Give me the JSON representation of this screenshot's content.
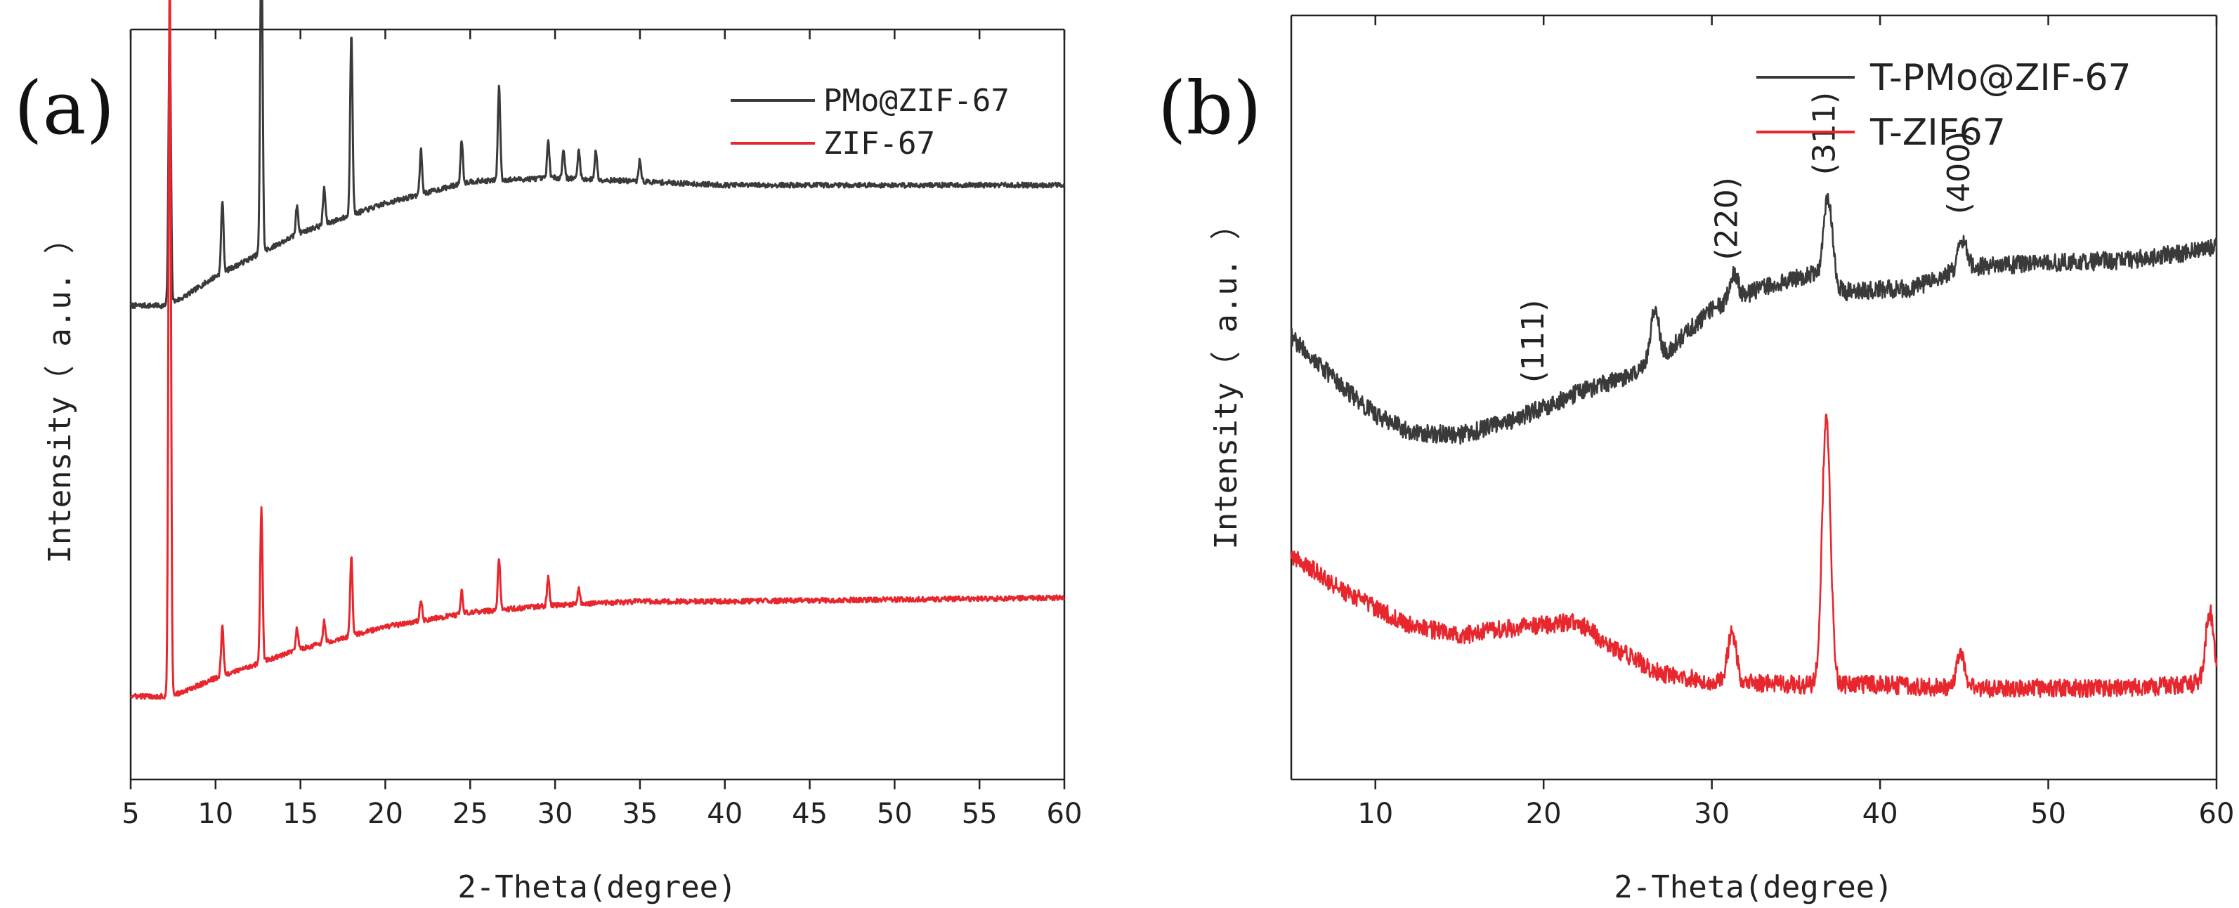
{
  "chart_data": [
    {
      "panel": "(a)",
      "type": "line",
      "xlabel": "2-Theta(degree)",
      "ylabel": "Intensity（ a.u. ）",
      "xlim": [
        5,
        60
      ],
      "xticks": [
        5,
        10,
        15,
        20,
        25,
        30,
        35,
        40,
        45,
        50,
        55,
        60
      ],
      "legend_position": "top-right",
      "series": [
        {
          "name": "PMo@ZIF-67",
          "color": "#3a3a3a",
          "baseline": [
            [
              5,
              0.62
            ],
            [
              7,
              0.62
            ],
            [
              8,
              0.63
            ],
            [
              10,
              0.66
            ],
            [
              15,
              0.72
            ],
            [
              20,
              0.76
            ],
            [
              25,
              0.79
            ],
            [
              30,
              0.795
            ],
            [
              35,
              0.79
            ],
            [
              40,
              0.785
            ],
            [
              60,
              0.785
            ]
          ],
          "peaks": [
            [
              7.3,
              0.38
            ],
            [
              10.4,
              0.1
            ],
            [
              12.7,
              0.45
            ],
            [
              14.8,
              0.04
            ],
            [
              16.4,
              0.05
            ],
            [
              18.0,
              0.25
            ],
            [
              22.1,
              0.06
            ],
            [
              24.5,
              0.06
            ],
            [
              26.7,
              0.13
            ],
            [
              29.6,
              0.05
            ],
            [
              30.5,
              0.04
            ],
            [
              31.4,
              0.04
            ],
            [
              32.4,
              0.04
            ],
            [
              35.0,
              0.03
            ]
          ]
        },
        {
          "name": "ZIF-67",
          "color": "#e8262d",
          "baseline": [
            [
              5,
              0.085
            ],
            [
              7,
              0.085
            ],
            [
              8,
              0.09
            ],
            [
              10,
              0.11
            ],
            [
              15,
              0.15
            ],
            [
              20,
              0.18
            ],
            [
              25,
              0.2
            ],
            [
              30,
              0.21
            ],
            [
              35,
              0.215
            ],
            [
              40,
              0.215
            ],
            [
              60,
              0.22
            ]
          ],
          "peaks": [
            [
              7.3,
              1.0
            ],
            [
              10.4,
              0.07
            ],
            [
              12.7,
              0.21
            ],
            [
              14.8,
              0.03
            ],
            [
              16.4,
              0.03
            ],
            [
              18.0,
              0.11
            ],
            [
              22.1,
              0.03
            ],
            [
              24.5,
              0.03
            ],
            [
              26.7,
              0.07
            ],
            [
              29.6,
              0.04
            ],
            [
              31.4,
              0.02
            ]
          ]
        }
      ]
    },
    {
      "panel": "(b)",
      "type": "line",
      "xlabel": "2-Theta(degree)",
      "ylabel": "Intensity（ a.u. ）",
      "xlim": [
        5,
        60
      ],
      "xticks": [
        10,
        20,
        30,
        40,
        50,
        60
      ],
      "legend_position": "top-right",
      "annotations": [
        {
          "text": "(111)",
          "x": 19.5
        },
        {
          "text": "(220)",
          "x": 31.0
        },
        {
          "text": "(311)",
          "x": 36.8
        },
        {
          "text": "(400)",
          "x": 44.8
        }
      ],
      "series": [
        {
          "name": "T-PMo@ZIF-67",
          "color": "#3a3a3a",
          "baseline": [
            [
              5,
              0.6
            ],
            [
              8,
              0.53
            ],
            [
              10,
              0.49
            ],
            [
              12,
              0.465
            ],
            [
              15,
              0.46
            ],
            [
              18,
              0.48
            ],
            [
              20,
              0.5
            ],
            [
              22,
              0.52
            ],
            [
              25,
              0.545
            ],
            [
              26.5,
              0.56
            ],
            [
              30,
              0.64
            ],
            [
              33,
              0.67
            ],
            [
              36,
              0.69
            ],
            [
              38,
              0.665
            ],
            [
              42,
              0.67
            ],
            [
              45,
              0.7
            ],
            [
              50,
              0.705
            ],
            [
              55,
              0.71
            ],
            [
              58,
              0.72
            ],
            [
              60,
              0.73
            ]
          ],
          "peaks": [
            [
              26.6,
              0.08
            ],
            [
              31.3,
              0.04
            ],
            [
              36.9,
              0.12
            ],
            [
              44.9,
              0.04
            ]
          ]
        },
        {
          "name": "T-ZIF67",
          "color": "#e8262d",
          "baseline": [
            [
              5,
              0.29
            ],
            [
              8,
              0.24
            ],
            [
              12,
              0.19
            ],
            [
              15,
              0.175
            ],
            [
              18,
              0.185
            ],
            [
              20,
              0.19
            ],
            [
              22,
              0.195
            ],
            [
              24,
              0.16
            ],
            [
              27,
              0.12
            ],
            [
              30,
              0.11
            ],
            [
              35,
              0.105
            ],
            [
              40,
              0.105
            ],
            [
              45,
              0.1
            ],
            [
              50,
              0.1
            ],
            [
              55,
              0.1
            ],
            [
              58,
              0.105
            ],
            [
              60,
              0.11
            ]
          ],
          "peaks": [
            [
              31.2,
              0.07
            ],
            [
              36.8,
              0.38
            ],
            [
              44.8,
              0.05
            ],
            [
              59.6,
              0.1
            ]
          ]
        }
      ]
    }
  ]
}
